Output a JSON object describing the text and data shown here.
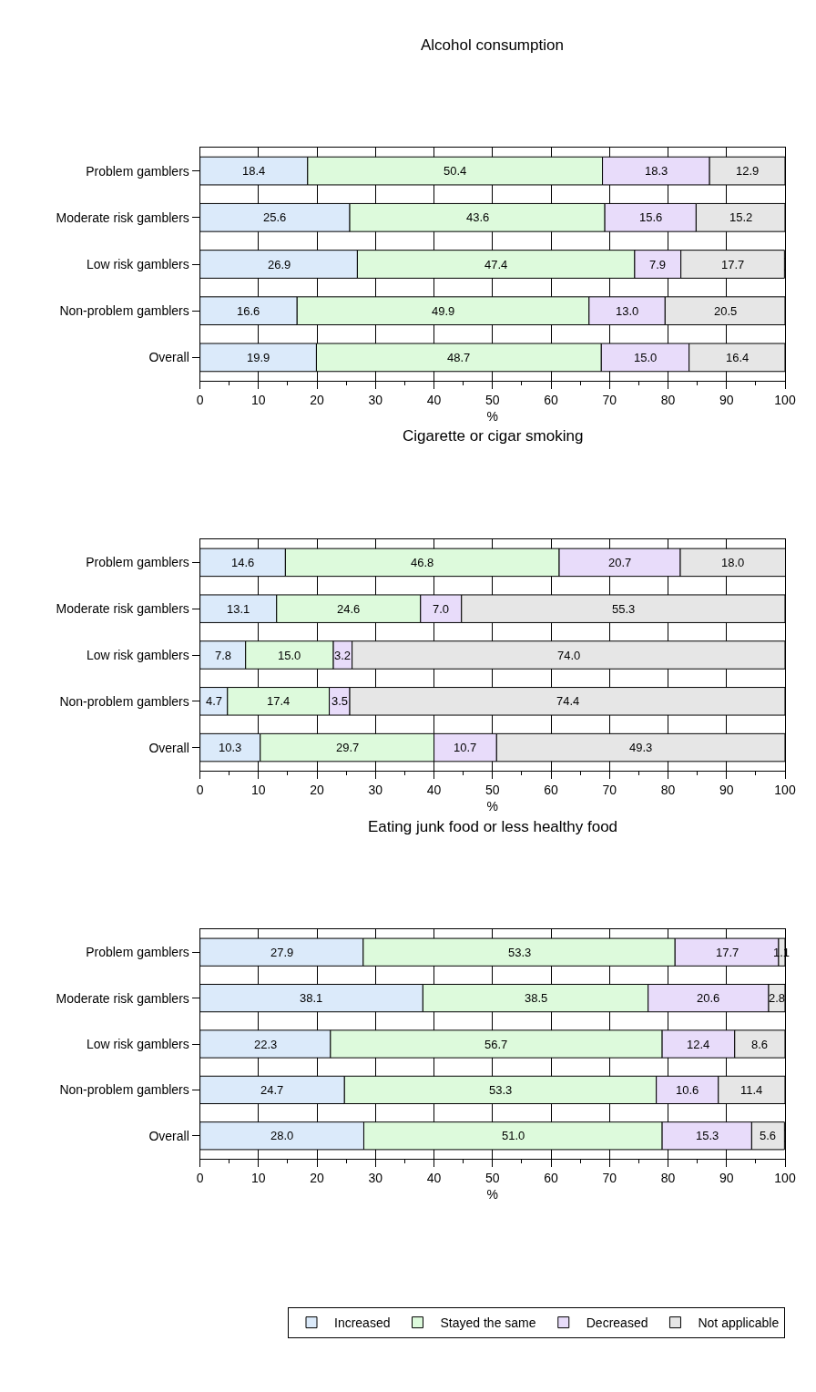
{
  "chart_data": [
    {
      "type": "bar",
      "orientation": "horizontal",
      "stacked": true,
      "title": "Alcohol consumption",
      "xlabel": "%",
      "categories": [
        "Problem gamblers",
        "Moderate risk gamblers",
        "Low risk gamblers",
        "Non-problem gamblers",
        "Overall"
      ],
      "xlim": [
        0,
        100
      ],
      "xticks": [
        0,
        10,
        20,
        30,
        40,
        50,
        60,
        70,
        80,
        90,
        100
      ],
      "grid": true,
      "legend": "bottom",
      "series": [
        {
          "color": "#dbeafa",
          "values": [
            18.4,
            25.6,
            26.9,
            16.6,
            19.9
          ],
          "value_labels": [
            "18.4",
            "25.6",
            "26.9",
            "16.6",
            "19.9"
          ]
        },
        {
          "color": "#ddfadc",
          "values": [
            50.4,
            43.6,
            47.4,
            49.9,
            48.7
          ],
          "value_labels": [
            "50.4",
            "43.6",
            "47.4",
            "49.9",
            "48.7"
          ]
        },
        {
          "color": "#e8dcfa",
          "values": [
            18.3,
            15.6,
            7.9,
            13.0,
            15.0
          ],
          "value_labels": [
            "18.3",
            "15.6",
            "7.9",
            "13.0",
            "15.0"
          ]
        },
        {
          "color": "#e6e6e6",
          "values": [
            12.9,
            15.2,
            17.7,
            20.5,
            16.4
          ],
          "value_labels": [
            "12.9",
            "15.2",
            "17.7",
            "20.5",
            "16.4"
          ]
        }
      ]
    },
    {
      "type": "bar",
      "orientation": "horizontal",
      "stacked": true,
      "title": "Cigarette or cigar smoking",
      "xlabel": "%",
      "categories": [
        "Problem gamblers",
        "Moderate risk gamblers",
        "Low risk gamblers",
        "Non-problem gamblers",
        "Overall"
      ],
      "xlim": [
        0,
        100
      ],
      "xticks": [
        0,
        10,
        20,
        30,
        40,
        50,
        60,
        70,
        80,
        90,
        100
      ],
      "grid": true,
      "legend": "bottom",
      "series": [
        {
          "color": "#dbeafa",
          "values": [
            14.6,
            13.1,
            7.8,
            4.7,
            10.3
          ],
          "value_labels": [
            "14.6",
            "13.1",
            "7.8",
            "4.7",
            "10.3"
          ]
        },
        {
          "color": "#ddfadc",
          "values": [
            46.8,
            24.6,
            15.0,
            17.4,
            29.7
          ],
          "value_labels": [
            "46.8",
            "24.6",
            "15.0",
            "17.4",
            "29.7"
          ]
        },
        {
          "color": "#e8dcfa",
          "values": [
            20.7,
            7.0,
            3.2,
            3.5,
            10.7
          ],
          "value_labels": [
            "20.7",
            "7.0",
            "3.2",
            "3.5",
            "10.7"
          ]
        },
        {
          "color": "#e6e6e6",
          "values": [
            18.0,
            55.3,
            74.0,
            74.4,
            49.3
          ],
          "value_labels": [
            "18.0",
            "55.3",
            "74.0",
            "74.4",
            "49.3"
          ]
        }
      ]
    },
    {
      "type": "bar",
      "orientation": "horizontal",
      "stacked": true,
      "title": "Eating junk food or less healthy food",
      "xlabel": "%",
      "categories": [
        "Problem gamblers",
        "Moderate risk gamblers",
        "Low risk gamblers",
        "Non-problem gamblers",
        "Overall"
      ],
      "xlim": [
        0,
        100
      ],
      "xticks": [
        0,
        10,
        20,
        30,
        40,
        50,
        60,
        70,
        80,
        90,
        100
      ],
      "grid": true,
      "legend": "bottom",
      "series": [
        {
          "name": "Increased",
          "color": "#dbeafa",
          "values": [
            27.9,
            38.1,
            22.3,
            24.7,
            28.0
          ],
          "value_labels": [
            "27.9",
            "38.1",
            "22.3",
            "24.7",
            "28.0"
          ]
        },
        {
          "name": "Stayed the same",
          "color": "#ddfadc",
          "values": [
            53.3,
            38.5,
            56.7,
            53.3,
            51.0
          ],
          "value_labels": [
            "53.3",
            "38.5",
            "56.7",
            "53.3",
            "51.0"
          ]
        },
        {
          "name": "Decreased",
          "color": "#e8dcfa",
          "values": [
            17.7,
            20.6,
            12.4,
            10.6,
            15.3
          ],
          "value_labels": [
            "17.7",
            "20.6",
            "12.4",
            "10.6",
            "15.3"
          ]
        },
        {
          "name": "Not applicable",
          "color": "#e6e6e6",
          "values": [
            1.1,
            2.8,
            8.6,
            11.4,
            5.6
          ],
          "value_labels": [
            "1.1",
            "2.8",
            "8.6",
            "11.4",
            "5.6"
          ]
        }
      ]
    }
  ]
}
